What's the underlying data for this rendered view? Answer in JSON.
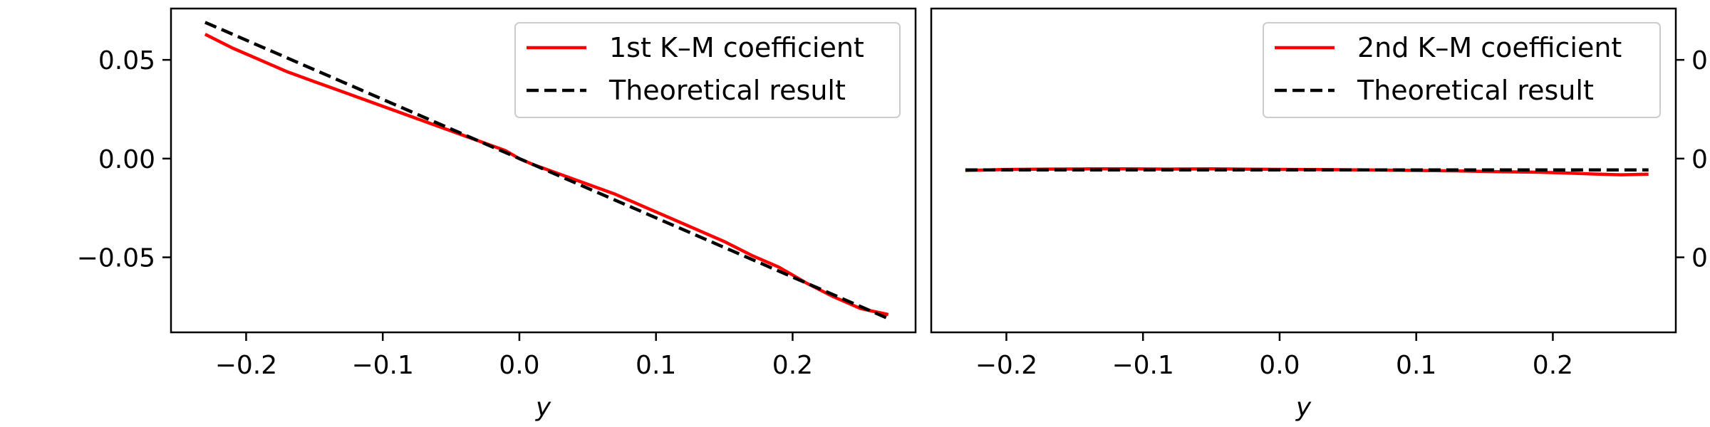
{
  "chart_data": [
    {
      "type": "line",
      "title": "",
      "xlabel": "y",
      "ylabel": "",
      "xlim": [
        -0.255,
        0.29
      ],
      "ylim": [
        -0.088,
        0.076
      ],
      "xticks": [
        -0.2,
        -0.1,
        0.0,
        0.1,
        0.2
      ],
      "xtick_labels": [
        "−0.2",
        "−0.1",
        "0.0",
        "0.1",
        "0.2"
      ],
      "yticks": [
        0.05,
        0.0,
        -0.05
      ],
      "ytick_labels": [
        "0.05",
        "0.00",
        "−0.05"
      ],
      "ytick_side": "left",
      "grid": false,
      "legend_position": "top-right",
      "series": [
        {
          "name": "1st K–M coefficient",
          "color": "#ff0000",
          "style": "solid",
          "x": [
            -0.23,
            -0.21,
            -0.19,
            -0.17,
            -0.15,
            -0.13,
            -0.11,
            -0.09,
            -0.07,
            -0.05,
            -0.03,
            -0.01,
            0.0,
            0.01,
            0.03,
            0.05,
            0.07,
            0.09,
            0.11,
            0.13,
            0.15,
            0.17,
            0.19,
            0.21,
            0.23,
            0.25,
            0.27
          ],
          "y": [
            0.063,
            0.056,
            0.05,
            0.044,
            0.039,
            0.034,
            0.029,
            0.024,
            0.019,
            0.014,
            0.009,
            0.004,
            0.0,
            -0.003,
            -0.008,
            -0.013,
            -0.018,
            -0.024,
            -0.03,
            -0.036,
            -0.042,
            -0.049,
            -0.055,
            -0.063,
            -0.07,
            -0.076,
            -0.079
          ]
        },
        {
          "name": "Theoretical result",
          "color": "#000000",
          "style": "dashed",
          "x": [
            -0.23,
            0.27
          ],
          "y": [
            0.069,
            -0.081
          ]
        }
      ]
    },
    {
      "type": "line",
      "title": "",
      "xlabel": "y",
      "ylabel": "",
      "xlim": [
        -0.255,
        0.29
      ],
      "ylim": [
        -0.088,
        0.076
      ],
      "xticks": [
        -0.2,
        -0.1,
        0.0,
        0.1,
        0.2
      ],
      "xtick_labels": [
        "−0.2",
        "−0.1",
        "0.0",
        "0.1",
        "0.2"
      ],
      "yticks": [
        0.05,
        0.0,
        -0.05
      ],
      "ytick_labels": [
        "0",
        "0",
        "0"
      ],
      "ytick_side": "right",
      "grid": false,
      "legend_position": "top-right",
      "series": [
        {
          "name": "2nd K–M coefficient",
          "color": "#ff0000",
          "style": "solid",
          "x": [
            -0.23,
            -0.2,
            -0.17,
            -0.14,
            -0.11,
            -0.08,
            -0.05,
            -0.02,
            0.01,
            0.04,
            0.07,
            0.1,
            0.13,
            0.16,
            0.19,
            0.21,
            0.23,
            0.25,
            0.27
          ],
          "y": [
            -0.006,
            -0.0055,
            -0.0053,
            -0.0052,
            -0.0052,
            -0.0053,
            -0.0052,
            -0.0054,
            -0.0055,
            -0.0056,
            -0.0058,
            -0.006,
            -0.0062,
            -0.0066,
            -0.0069,
            -0.0073,
            -0.0078,
            -0.0082,
            -0.0079
          ]
        },
        {
          "name": "Theoretical result",
          "color": "#000000",
          "style": "dashed",
          "x": [
            -0.23,
            0.27
          ],
          "y": [
            -0.0057,
            -0.0057
          ]
        }
      ]
    }
  ]
}
